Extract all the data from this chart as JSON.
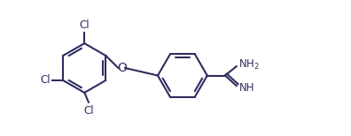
{
  "background_color": "#ffffff",
  "line_color": "#2d2d5f",
  "line_width": 1.5,
  "font_size": 8.5,
  "fig_width": 3.96,
  "fig_height": 1.54,
  "dpi": 100,
  "xlim": [
    0,
    10
  ],
  "ylim": [
    0,
    3.9
  ]
}
